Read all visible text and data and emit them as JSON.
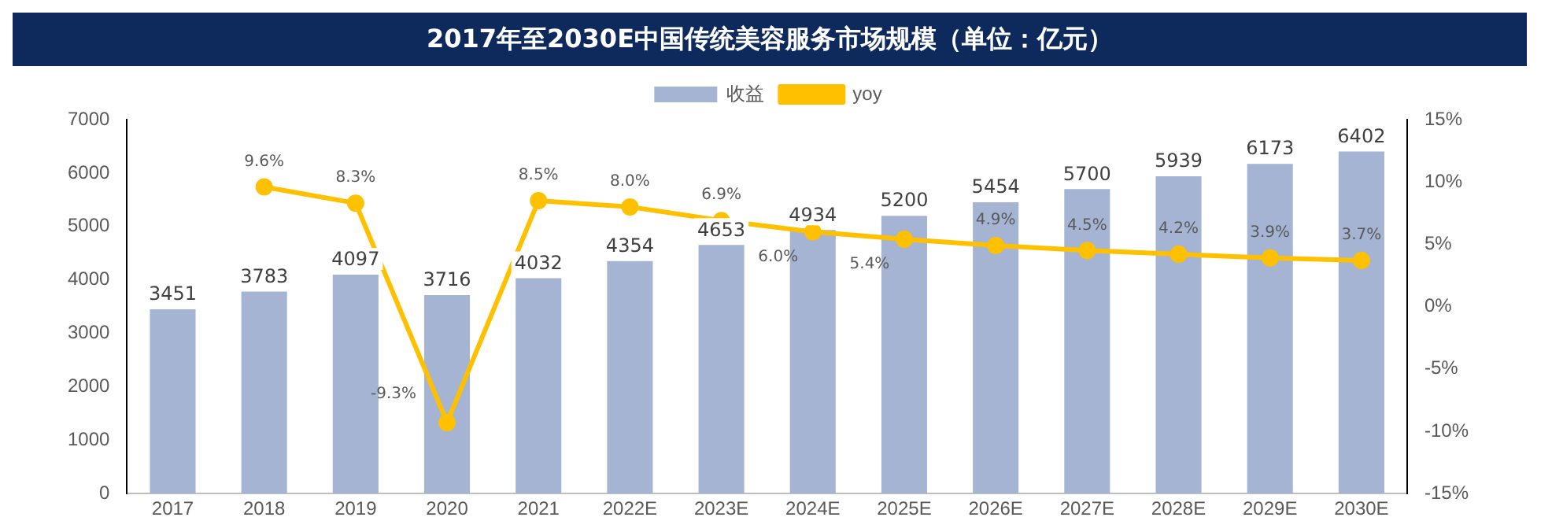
{
  "chart_data": {
    "type": "bar",
    "title": "2017年至2030E中国传统美容服务市场规模（单位：亿元）",
    "categories": [
      "2017",
      "2018",
      "2019",
      "2020",
      "2021",
      "2022E",
      "2023E",
      "2024E",
      "2025E",
      "2026E",
      "2027E",
      "2028E",
      "2029E",
      "2030E"
    ],
    "series": [
      {
        "name": "收益",
        "color": "#a5b4d2",
        "values": [
          3451,
          3783,
          4097,
          3716,
          4032,
          4354,
          4653,
          4934,
          5200,
          5454,
          5700,
          5939,
          6173,
          6402
        ],
        "value_labels": [
          "3451",
          "3783",
          "4097",
          "3716",
          "4032",
          "4354",
          "4653",
          "4934",
          "5200",
          "5454",
          "5700",
          "5939",
          "6173",
          "6402"
        ]
      },
      {
        "name": "yoy",
        "type": "line",
        "axis": "y2",
        "color": "#ffc000",
        "marker": "circle",
        "values": [
          null,
          9.6,
          8.3,
          -9.3,
          8.5,
          8.0,
          6.9,
          6.0,
          5.4,
          4.9,
          4.5,
          4.2,
          3.9,
          3.7
        ],
        "value_labels": [
          null,
          "9.6%",
          "8.3%",
          "-9.3%",
          "8.5%",
          "8.0%",
          "6.9%",
          "6.0%",
          "5.4%",
          "4.9%",
          "4.5%",
          "4.2%",
          "3.9%",
          "3.7%"
        ]
      }
    ],
    "ylim": [
      0,
      7000
    ],
    "yticks": [
      0,
      1000,
      2000,
      3000,
      4000,
      5000,
      6000,
      7000
    ],
    "y2lim": [
      -15,
      15
    ],
    "y2ticks": [
      {
        "value": -15,
        "label": "-15%"
      },
      {
        "value": -10,
        "label": "-10%"
      },
      {
        "value": -5,
        "label": "-5%"
      },
      {
        "value": 0,
        "label": "0%"
      },
      {
        "value": 5,
        "label": "5%"
      },
      {
        "value": 10,
        "label": "10%"
      },
      {
        "value": 15,
        "label": "15%"
      }
    ],
    "grid": false,
    "legend": "top"
  }
}
